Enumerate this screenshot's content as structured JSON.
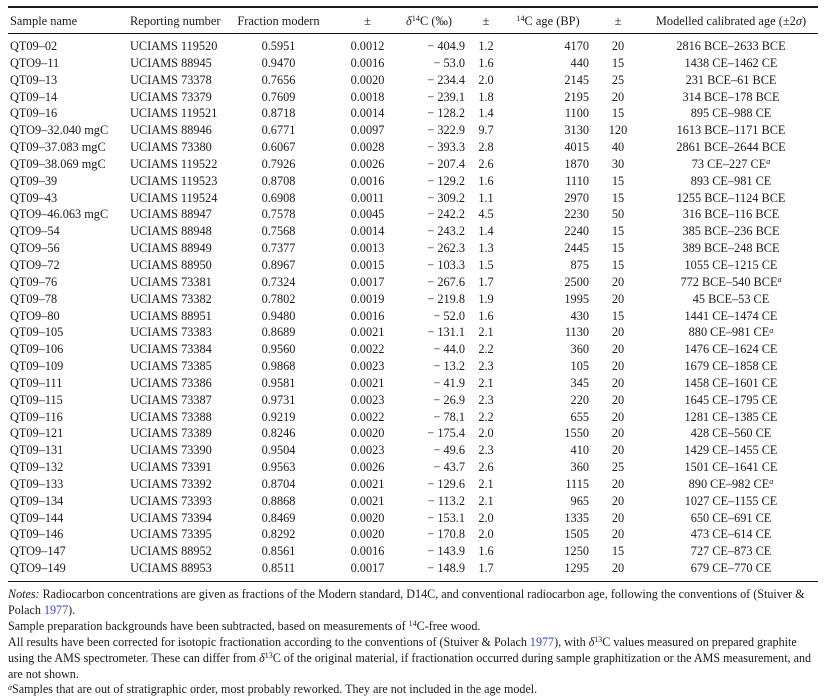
{
  "colors": {
    "link": "#3246c0",
    "rule": "#191919",
    "text": "#1b1b1b"
  },
  "table": {
    "columns": [
      {
        "key": "sample",
        "align": "al",
        "label": [
          {
            "t": "Sample name"
          }
        ]
      },
      {
        "key": "report",
        "align": "ac",
        "label": [
          {
            "t": "Reporting number"
          }
        ]
      },
      {
        "key": "fm",
        "align": "ac",
        "label": [
          {
            "t": "Fraction modern"
          }
        ]
      },
      {
        "key": "fm_err",
        "align": "ac",
        "label": [
          {
            "t": "±"
          }
        ]
      },
      {
        "key": "d14c",
        "align": "ar",
        "label": [
          {
            "t": "δ",
            "s": "i"
          },
          {
            "t": "14",
            "s": "sup"
          },
          {
            "t": "C (‰)"
          }
        ]
      },
      {
        "key": "d14c_err",
        "align": "ac",
        "label": [
          {
            "t": "±"
          }
        ]
      },
      {
        "key": "age",
        "align": "ar",
        "label": [
          {
            "t": "14",
            "s": "sup"
          },
          {
            "t": "C age (BP)"
          }
        ]
      },
      {
        "key": "age_err",
        "align": "ac",
        "label": [
          {
            "t": "±"
          }
        ]
      },
      {
        "key": "cal",
        "align": "ac",
        "label": [
          {
            "t": "Modelled calibrated age (±2"
          },
          {
            "t": "σ",
            "s": "i"
          },
          {
            "t": ")"
          }
        ]
      }
    ],
    "rows": [
      [
        "QT09–02",
        "UCIAMS 119520",
        "0.5951",
        "0.0012",
        "− 404.9",
        "1.2",
        "4170",
        "20",
        "2816 BCE–2633 BCE",
        ""
      ],
      [
        "QTO9–11",
        "UCIAMS 88945",
        "0.9470",
        "0.0016",
        "− 53.0",
        "1.6",
        "440",
        "15",
        "1438 CE–1462 CE",
        ""
      ],
      [
        "QT09–13",
        "UCIAMS 73378",
        "0.7656",
        "0.0020",
        "− 234.4",
        "2.0",
        "2145",
        "25",
        "231 BCE–61 BCE",
        ""
      ],
      [
        "QT09–14",
        "UCIAMS 73379",
        "0.7609",
        "0.0018",
        "− 239.1",
        "1.8",
        "2195",
        "20",
        "314 BCE–178 BCE",
        ""
      ],
      [
        "QT09–16",
        "UCIAMS 119521",
        "0.8718",
        "0.0014",
        "− 128.2",
        "1.4",
        "1100",
        "15",
        "895 CE–988 CE",
        ""
      ],
      [
        "QTO9–32.040 mgC",
        "UCIAMS 88946",
        "0.6771",
        "0.0097",
        "− 322.9",
        "9.7",
        "3130",
        "120",
        "1613 BCE–1171 BCE",
        ""
      ],
      [
        "QT09–37.083 mgC",
        "UCIAMS 73380",
        "0.6067",
        "0.0028",
        "− 393.3",
        "2.8",
        "4015",
        "40",
        "2861 BCE–2644 BCE",
        ""
      ],
      [
        "QT09–38.069 mgC",
        "UCIAMS 119522",
        "0.7926",
        "0.0026",
        "− 207.4",
        "2.6",
        "1870",
        "30",
        "73 CE–227 CE",
        "a"
      ],
      [
        "QT09–39",
        "UCIAMS 119523",
        "0.8708",
        "0.0016",
        "− 129.2",
        "1.6",
        "1110",
        "15",
        "893 CE–981 CE",
        ""
      ],
      [
        "QT09–43",
        "UCIAMS 119524",
        "0.6908",
        "0.0011",
        "− 309.2",
        "1.1",
        "2970",
        "15",
        "1255 BCE–1124 BCE",
        ""
      ],
      [
        "QTO9–46.063 mgC",
        "UCIAMS 88947",
        "0.7578",
        "0.0045",
        "− 242.2",
        "4.5",
        "2230",
        "50",
        "316 BCE–116 BCE",
        ""
      ],
      [
        "QTO9–54",
        "UCIAMS 88948",
        "0.7568",
        "0.0014",
        "− 243.2",
        "1.4",
        "2240",
        "15",
        "385 BCE–236 BCE",
        ""
      ],
      [
        "QTO9–56",
        "UCIAMS 88949",
        "0.7377",
        "0.0013",
        "− 262.3",
        "1.3",
        "2445",
        "15",
        "389 BCE–248 BCE",
        ""
      ],
      [
        "QTO9–72",
        "UCIAMS 88950",
        "0.8967",
        "0.0015",
        "− 103.3",
        "1.5",
        "875",
        "15",
        "1055 CE–1215 CE",
        ""
      ],
      [
        "QT09–76",
        "UCIAMS 73381",
        "0.7324",
        "0.0017",
        "− 267.6",
        "1.7",
        "2500",
        "20",
        "772 BCE–540 BCE",
        "a"
      ],
      [
        "QT09–78",
        "UCIAMS 73382",
        "0.7802",
        "0.0019",
        "− 219.8",
        "1.9",
        "1995",
        "20",
        "45 BCE–53 CE",
        ""
      ],
      [
        "QTO9–80",
        "UCIAMS 88951",
        "0.9480",
        "0.0016",
        "− 52.0",
        "1.6",
        "430",
        "15",
        "1441 CE–1474 CE",
        ""
      ],
      [
        "QT09–105",
        "UCIAMS 73383",
        "0.8689",
        "0.0021",
        "− 131.1",
        "2.1",
        "1130",
        "20",
        "880 CE–981 CE",
        "a"
      ],
      [
        "QT09–106",
        "UCIAMS 73384",
        "0.9560",
        "0.0022",
        "− 44.0",
        "2.2",
        "360",
        "20",
        "1476 CE–1624 CE",
        ""
      ],
      [
        "QT09–109",
        "UCIAMS 73385",
        "0.9868",
        "0.0023",
        "− 13.2",
        "2.3",
        "105",
        "20",
        "1679 CE–1858 CE",
        ""
      ],
      [
        "QT09–111",
        "UCIAMS 73386",
        "0.9581",
        "0.0021",
        "− 41.9",
        "2.1",
        "345",
        "20",
        "1458 CE–1601 CE",
        ""
      ],
      [
        "QT09–115",
        "UCIAMS 73387",
        "0.9731",
        "0.0023",
        "− 26.9",
        "2.3",
        "220",
        "20",
        "1645 CE–1795 CE",
        ""
      ],
      [
        "QT09–116",
        "UCIAMS 73388",
        "0.9219",
        "0.0022",
        "− 78.1",
        "2.2",
        "655",
        "20",
        "1281 CE–1385 CE",
        ""
      ],
      [
        "QT09–121",
        "UCIAMS 73389",
        "0.8246",
        "0.0020",
        "− 175.4",
        "2.0",
        "1550",
        "20",
        "428 CE–560 CE",
        ""
      ],
      [
        "QT09–131",
        "UCIAMS 73390",
        "0.9504",
        "0.0023",
        "− 49.6",
        "2.3",
        "410",
        "20",
        "1429 CE–1455 CE",
        ""
      ],
      [
        "QT09–132",
        "UCIAMS 73391",
        "0.9563",
        "0.0026",
        "− 43.7",
        "2.6",
        "360",
        "25",
        "1501 CE–1641 CE",
        ""
      ],
      [
        "QT09–133",
        "UCIAMS 73392",
        "0.8704",
        "0.0021",
        "− 129.6",
        "2.1",
        "1115",
        "20",
        "890 CE–982 CE",
        "a"
      ],
      [
        "QT09–134",
        "UCIAMS 73393",
        "0.8868",
        "0.0021",
        "− 113.2",
        "2.1",
        "965",
        "20",
        "1027 CE–1155 CE",
        ""
      ],
      [
        "QT09–144",
        "UCIAMS 73394",
        "0.8469",
        "0.0020",
        "− 153.1",
        "2.0",
        "1335",
        "20",
        "650 CE–691 CE",
        ""
      ],
      [
        "QT09–146",
        "UCIAMS 73395",
        "0.8292",
        "0.0020",
        "− 170.8",
        "2.0",
        "1505",
        "20",
        "473 CE–614 CE",
        ""
      ],
      [
        "QTO9–147",
        "UCIAMS 88952",
        "0.8561",
        "0.0016",
        "− 143.9",
        "1.6",
        "1250",
        "15",
        "727 CE–873 CE",
        ""
      ],
      [
        "QTO9–149",
        "UCIAMS 88953",
        "0.8511",
        "0.0017",
        "− 148.9",
        "1.7",
        "1295",
        "20",
        "679 CE–770 CE",
        ""
      ]
    ]
  },
  "notes": [
    {
      "segments": [
        {
          "t": "Notes:",
          "s": "i"
        },
        {
          "t": " Radiocarbon concentrations are given as fractions of the Modern standard, D14C, and conventional radiocarbon age, following the conventions of (Stuiver & Polach "
        },
        {
          "t": "1977",
          "s": "link"
        },
        {
          "t": ")."
        }
      ]
    },
    {
      "segments": [
        {
          "t": "Sample preparation backgrounds have been subtracted, based on measurements of "
        },
        {
          "t": "14",
          "s": "sup"
        },
        {
          "t": "C-free wood."
        }
      ]
    },
    {
      "segments": [
        {
          "t": "All results have been corrected for isotopic fractionation according to the conventions of (Stuiver & Polach "
        },
        {
          "t": "1977",
          "s": "link"
        },
        {
          "t": "), with "
        },
        {
          "t": "δ",
          "s": "bi"
        },
        {
          "t": "13",
          "s": "sup"
        },
        {
          "t": "C values measured on prepared graphite using the AMS spectrometer. These can differ from "
        },
        {
          "t": "δ",
          "s": "bi"
        },
        {
          "t": "13",
          "s": "sup"
        },
        {
          "t": "C of the original material, if fractionation occurred during sample graphitization or the AMS measurement, and are not shown."
        }
      ]
    },
    {
      "segments": [
        {
          "t": "a",
          "s": "supi"
        },
        {
          "t": "Samples that are out of stratigraphic order, most probably reworked. They are not included in the age model."
        }
      ]
    }
  ]
}
